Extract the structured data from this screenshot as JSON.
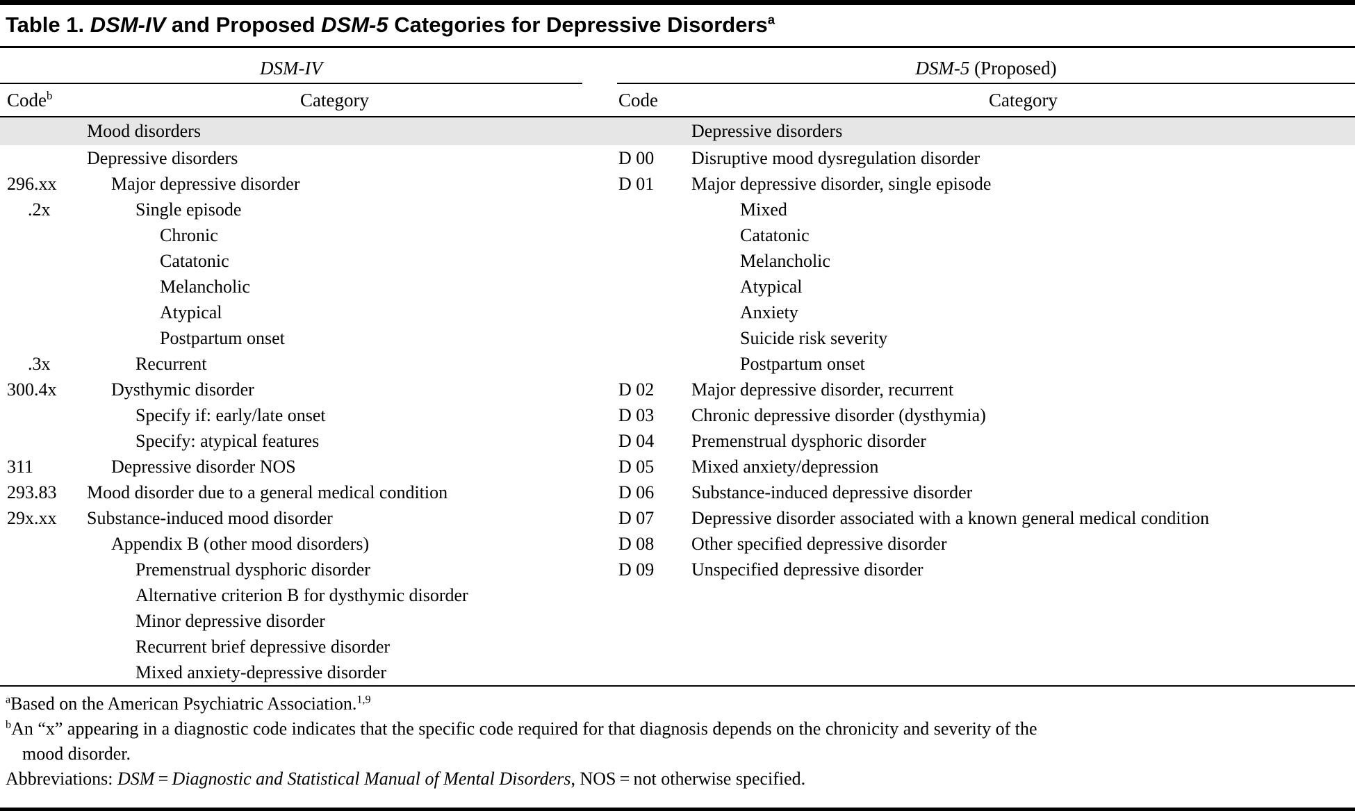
{
  "title": {
    "label": "Table 1. ",
    "seg_italic1": "DSM-IV",
    "seg_mid": " and Proposed ",
    "seg_italic2": "DSM-5",
    "seg_end": " Categories for Depressive Disorders",
    "footnote_marker": "a"
  },
  "group_headers": {
    "left": "DSM-IV",
    "right_italic": "DSM-5",
    "right_plain": " (Proposed)"
  },
  "column_headers": {
    "left_code": "Code",
    "left_code_sup": "b",
    "left_category": "Category",
    "right_code": "Code",
    "right_category": "Category"
  },
  "rows": [
    {
      "lc": "",
      "lci": 0,
      "lcat": "Mood disorders",
      "li": 0,
      "rc": "",
      "rcat": "Depressive disorders",
      "ri": 0,
      "shaded": true
    },
    {
      "lc": "",
      "lci": 0,
      "lcat": "Depressive disorders",
      "li": 0,
      "rc": "D 00",
      "rcat": "Disruptive mood dysregulation disorder",
      "ri": 0
    },
    {
      "lc": "296.xx",
      "lci": 0,
      "lcat": "Major depressive disorder",
      "li": 1,
      "rc": "D 01",
      "rcat": "Major depressive disorder, single episode",
      "ri": 0
    },
    {
      "lc": ".2x",
      "lci": 1,
      "lcat": "Single episode",
      "li": 2,
      "rc": "",
      "rcat": "Mixed",
      "ri": 2
    },
    {
      "lc": "",
      "lci": 0,
      "lcat": "Chronic",
      "li": 3,
      "rc": "",
      "rcat": "Catatonic",
      "ri": 2
    },
    {
      "lc": "",
      "lci": 0,
      "lcat": "Catatonic",
      "li": 3,
      "rc": "",
      "rcat": "Melancholic",
      "ri": 2
    },
    {
      "lc": "",
      "lci": 0,
      "lcat": "Melancholic",
      "li": 3,
      "rc": "",
      "rcat": "Atypical",
      "ri": 2
    },
    {
      "lc": "",
      "lci": 0,
      "lcat": "Atypical",
      "li": 3,
      "rc": "",
      "rcat": "Anxiety",
      "ri": 2
    },
    {
      "lc": "",
      "lci": 0,
      "lcat": "Postpartum onset",
      "li": 3,
      "rc": "",
      "rcat": "Suicide risk severity",
      "ri": 2
    },
    {
      "lc": ".3x",
      "lci": 1,
      "lcat": "Recurrent",
      "li": 2,
      "rc": "",
      "rcat": "Postpartum onset",
      "ri": 2
    },
    {
      "lc": "300.4x",
      "lci": 0,
      "lcat": "Dysthymic disorder",
      "li": 1,
      "rc": "D 02",
      "rcat": "Major depressive disorder, recurrent",
      "ri": 0
    },
    {
      "lc": "",
      "lci": 0,
      "lcat": "Specify if: early/late onset",
      "li": 2,
      "rc": "D 03",
      "rcat": "Chronic depressive disorder (dysthymia)",
      "ri": 0
    },
    {
      "lc": "",
      "lci": 0,
      "lcat": "Specify: atypical features",
      "li": 2,
      "rc": "D 04",
      "rcat": "Premenstrual dysphoric disorder",
      "ri": 0
    },
    {
      "lc": "311",
      "lci": 0,
      "lcat": "Depressive disorder NOS",
      "li": 1,
      "rc": "D 05",
      "rcat": "Mixed anxiety/depression",
      "ri": 0
    },
    {
      "lc": "293.83",
      "lci": 0,
      "lcat": "Mood disorder due to a general medical condition",
      "li": 0,
      "rc": "D 06",
      "rcat": "Substance-induced depressive disorder",
      "ri": 0
    },
    {
      "lc": "29x.xx",
      "lci": 0,
      "lcat": "Substance-induced mood disorder",
      "li": 0,
      "rc": "D 07",
      "rcat": "Depressive disorder associated with a known general medical condition",
      "ri": 0
    },
    {
      "lc": "",
      "lci": 0,
      "lcat": "Appendix B (other mood disorders)",
      "li": 1,
      "rc": "D 08",
      "rcat": "Other specified depressive disorder",
      "ri": 0
    },
    {
      "lc": "",
      "lci": 0,
      "lcat": "Premenstrual dysphoric disorder",
      "li": 2,
      "rc": "D 09",
      "rcat": "Unspecified depressive disorder",
      "ri": 0
    },
    {
      "lc": "",
      "lci": 0,
      "lcat": "Alternative criterion B for dysthymic disorder",
      "li": 2,
      "rc": "",
      "rcat": "",
      "ri": 0
    },
    {
      "lc": "",
      "lci": 0,
      "lcat": "Minor depressive disorder",
      "li": 2,
      "rc": "",
      "rcat": "",
      "ri": 0
    },
    {
      "lc": "",
      "lci": 0,
      "lcat": "Recurrent brief depressive disorder",
      "li": 2,
      "rc": "",
      "rcat": "",
      "ri": 0
    },
    {
      "lc": "",
      "lci": 0,
      "lcat": "Mixed anxiety-depressive disorder",
      "li": 2,
      "rc": "",
      "rcat": "",
      "ri": 0
    }
  ],
  "footnotes": {
    "a_marker": "a",
    "a_text": "Based on the American Psychiatric Association.",
    "a_refs": "1,9",
    "b_marker": "b",
    "b_text_line1": "An “x” appearing in a diagnostic code indicates that the specific code required for that diagnosis depends on the chronicity and severity of the",
    "b_text_line2": "mood disorder.",
    "abbr_prefix": "Abbreviations: ",
    "abbr_italic1": "DSM",
    "abbr_eq1": " = ",
    "abbr_italic2": "Diagnostic and Statistical Manual of Mental Disorders",
    "abbr_suffix": ", NOS = not otherwise specified."
  },
  "colors": {
    "shaded_row": "#e6e6e6",
    "rule": "#000000",
    "text": "#000000"
  }
}
